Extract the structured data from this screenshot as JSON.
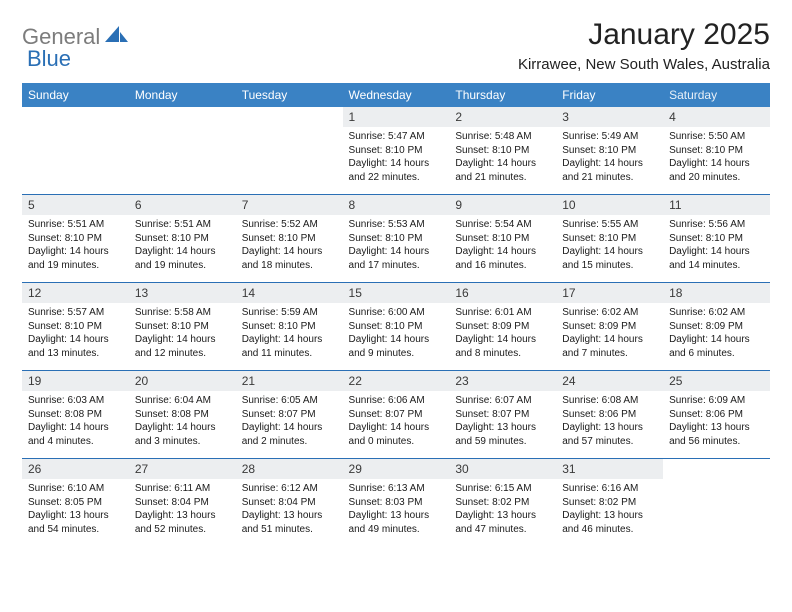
{
  "brand": {
    "part1": "General",
    "part2": "Blue"
  },
  "title": "January 2025",
  "location": "Kirrawee, New South Wales, Australia",
  "colors": {
    "header_bg": "#3a82c4",
    "header_fg": "#ffffff",
    "accent": "#2a6fb5",
    "daynum_bg": "#eceef0",
    "logo_gray": "#7c7c7c"
  },
  "weekdays": [
    "Sunday",
    "Monday",
    "Tuesday",
    "Wednesday",
    "Thursday",
    "Friday",
    "Saturday"
  ],
  "weeks": [
    [
      {
        "n": "",
        "sr": "",
        "ss": "",
        "dl": ""
      },
      {
        "n": "",
        "sr": "",
        "ss": "",
        "dl": ""
      },
      {
        "n": "",
        "sr": "",
        "ss": "",
        "dl": ""
      },
      {
        "n": "1",
        "sr": "5:47 AM",
        "ss": "8:10 PM",
        "dl": "14 hours and 22 minutes."
      },
      {
        "n": "2",
        "sr": "5:48 AM",
        "ss": "8:10 PM",
        "dl": "14 hours and 21 minutes."
      },
      {
        "n": "3",
        "sr": "5:49 AM",
        "ss": "8:10 PM",
        "dl": "14 hours and 21 minutes."
      },
      {
        "n": "4",
        "sr": "5:50 AM",
        "ss": "8:10 PM",
        "dl": "14 hours and 20 minutes."
      }
    ],
    [
      {
        "n": "5",
        "sr": "5:51 AM",
        "ss": "8:10 PM",
        "dl": "14 hours and 19 minutes."
      },
      {
        "n": "6",
        "sr": "5:51 AM",
        "ss": "8:10 PM",
        "dl": "14 hours and 19 minutes."
      },
      {
        "n": "7",
        "sr": "5:52 AM",
        "ss": "8:10 PM",
        "dl": "14 hours and 18 minutes."
      },
      {
        "n": "8",
        "sr": "5:53 AM",
        "ss": "8:10 PM",
        "dl": "14 hours and 17 minutes."
      },
      {
        "n": "9",
        "sr": "5:54 AM",
        "ss": "8:10 PM",
        "dl": "14 hours and 16 minutes."
      },
      {
        "n": "10",
        "sr": "5:55 AM",
        "ss": "8:10 PM",
        "dl": "14 hours and 15 minutes."
      },
      {
        "n": "11",
        "sr": "5:56 AM",
        "ss": "8:10 PM",
        "dl": "14 hours and 14 minutes."
      }
    ],
    [
      {
        "n": "12",
        "sr": "5:57 AM",
        "ss": "8:10 PM",
        "dl": "14 hours and 13 minutes."
      },
      {
        "n": "13",
        "sr": "5:58 AM",
        "ss": "8:10 PM",
        "dl": "14 hours and 12 minutes."
      },
      {
        "n": "14",
        "sr": "5:59 AM",
        "ss": "8:10 PM",
        "dl": "14 hours and 11 minutes."
      },
      {
        "n": "15",
        "sr": "6:00 AM",
        "ss": "8:10 PM",
        "dl": "14 hours and 9 minutes."
      },
      {
        "n": "16",
        "sr": "6:01 AM",
        "ss": "8:09 PM",
        "dl": "14 hours and 8 minutes."
      },
      {
        "n": "17",
        "sr": "6:02 AM",
        "ss": "8:09 PM",
        "dl": "14 hours and 7 minutes."
      },
      {
        "n": "18",
        "sr": "6:02 AM",
        "ss": "8:09 PM",
        "dl": "14 hours and 6 minutes."
      }
    ],
    [
      {
        "n": "19",
        "sr": "6:03 AM",
        "ss": "8:08 PM",
        "dl": "14 hours and 4 minutes."
      },
      {
        "n": "20",
        "sr": "6:04 AM",
        "ss": "8:08 PM",
        "dl": "14 hours and 3 minutes."
      },
      {
        "n": "21",
        "sr": "6:05 AM",
        "ss": "8:07 PM",
        "dl": "14 hours and 2 minutes."
      },
      {
        "n": "22",
        "sr": "6:06 AM",
        "ss": "8:07 PM",
        "dl": "14 hours and 0 minutes."
      },
      {
        "n": "23",
        "sr": "6:07 AM",
        "ss": "8:07 PM",
        "dl": "13 hours and 59 minutes."
      },
      {
        "n": "24",
        "sr": "6:08 AM",
        "ss": "8:06 PM",
        "dl": "13 hours and 57 minutes."
      },
      {
        "n": "25",
        "sr": "6:09 AM",
        "ss": "8:06 PM",
        "dl": "13 hours and 56 minutes."
      }
    ],
    [
      {
        "n": "26",
        "sr": "6:10 AM",
        "ss": "8:05 PM",
        "dl": "13 hours and 54 minutes."
      },
      {
        "n": "27",
        "sr": "6:11 AM",
        "ss": "8:04 PM",
        "dl": "13 hours and 52 minutes."
      },
      {
        "n": "28",
        "sr": "6:12 AM",
        "ss": "8:04 PM",
        "dl": "13 hours and 51 minutes."
      },
      {
        "n": "29",
        "sr": "6:13 AM",
        "ss": "8:03 PM",
        "dl": "13 hours and 49 minutes."
      },
      {
        "n": "30",
        "sr": "6:15 AM",
        "ss": "8:02 PM",
        "dl": "13 hours and 47 minutes."
      },
      {
        "n": "31",
        "sr": "6:16 AM",
        "ss": "8:02 PM",
        "dl": "13 hours and 46 minutes."
      },
      {
        "n": "",
        "sr": "",
        "ss": "",
        "dl": ""
      }
    ]
  ],
  "labels": {
    "sunrise": "Sunrise:",
    "sunset": "Sunset:",
    "daylight": "Daylight:"
  }
}
